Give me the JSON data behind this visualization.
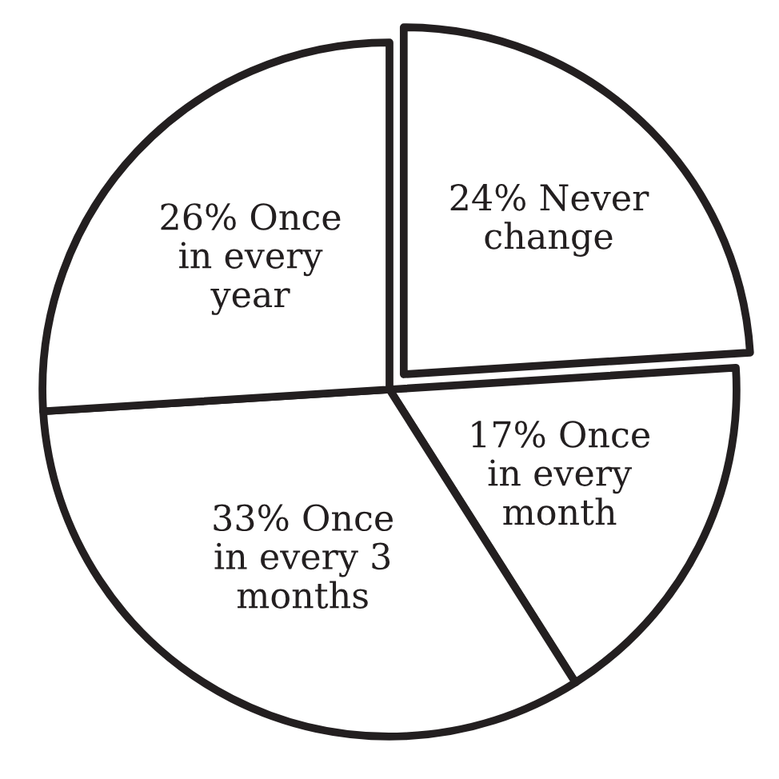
{
  "chart_data": {
    "type": "pie",
    "categories": [
      "Never\nchange",
      "Once\nin every\nmonth",
      "Once\nin every 3\nmonths",
      "Once\nin every\nyear"
    ],
    "values": [
      24,
      17,
      33,
      26
    ],
    "value_labels": [
      "24%",
      "17%",
      "33%",
      "26%"
    ],
    "colors": [
      "#ffffff",
      "#ffffff",
      "#ffffff",
      "#ffffff"
    ],
    "legend": false
  }
}
